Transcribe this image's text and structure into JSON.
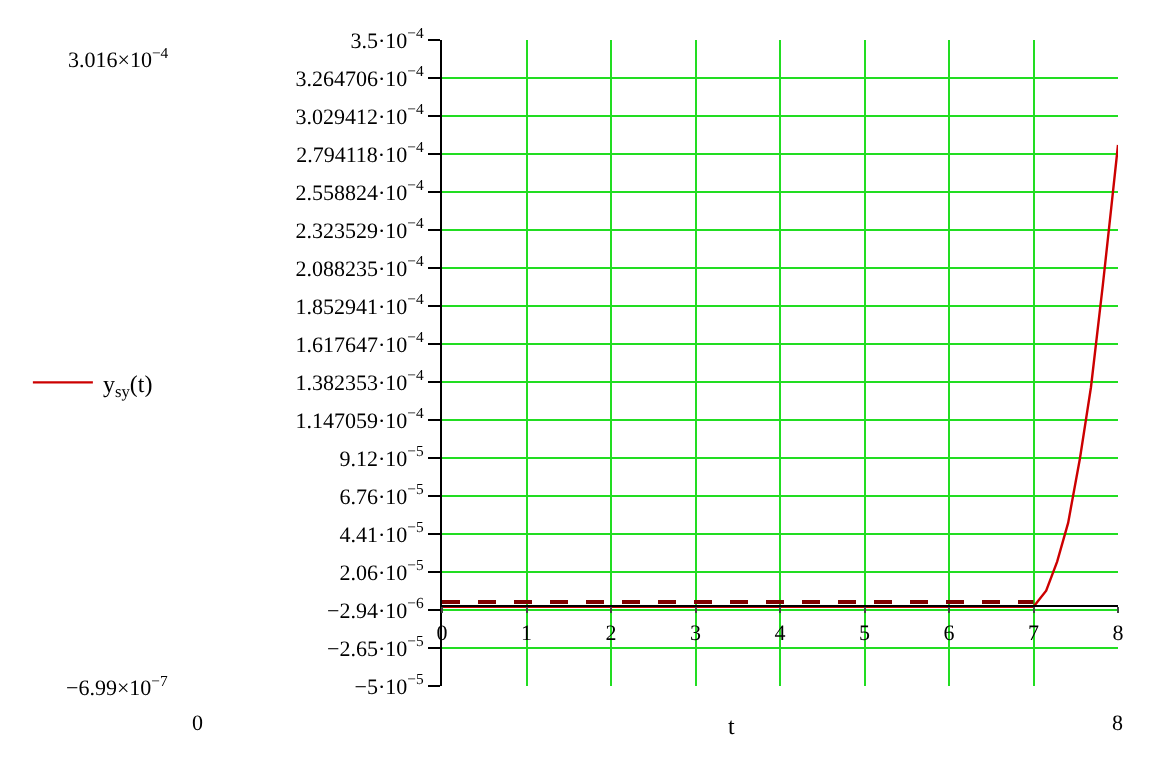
{
  "chart_data": {
    "type": "line",
    "xlabel": "t",
    "legend": "left",
    "grid": true,
    "series": [
      {
        "color": "#800000",
        "line_style": "dashed",
        "x": [
          0,
          7
        ],
        "values": [
          2e-06,
          2e-06
        ]
      },
      {
        "name": "y$_{sy}$(t)",
        "color": "#cc0000",
        "line_style": "solid",
        "x": [
          0,
          1,
          2,
          3,
          4,
          5,
          6,
          7,
          7.15,
          7.28,
          7.41,
          7.55,
          7.68,
          7.82,
          7.92,
          8
        ],
        "values": [
          -1e-06,
          -1e-06,
          -1e-06,
          -1e-06,
          -1e-06,
          -1e-06,
          -1e-06,
          -1e-06,
          9e-06,
          2.7e-05,
          5.1e-05,
          9.1e-05,
          0.000135,
          0.000198,
          0.000246,
          0.000285
        ]
      }
    ],
    "xlim": [
      0,
      8
    ],
    "xticks": [
      0,
      1,
      2,
      3,
      4,
      5,
      6,
      7,
      8
    ],
    "ylim": [
      -5e-05,
      0.00035
    ],
    "yticks": [
      {
        "value": -5e-05,
        "label": "−5·10$^{−5}$"
      },
      {
        "value": -2.647059e-05,
        "label": "−2.65·10$^{−5}$"
      },
      {
        "value": -2.941176e-06,
        "label": "−2.94·10$^{−6}$"
      },
      {
        "value": 2.058824e-05,
        "label": "2.06·10$^{−5}$"
      },
      {
        "value": 4.411765e-05,
        "label": "4.41·10$^{−5}$"
      },
      {
        "value": 6.764706e-05,
        "label": "6.76·10$^{−5}$"
      },
      {
        "value": 9.117647e-05,
        "label": "9.12·10$^{−5}$"
      },
      {
        "value": 0.0001147059,
        "label": "1.147059·10$^{−4}$"
      },
      {
        "value": 0.0001382353,
        "label": "1.382353·10$^{−4}$"
      },
      {
        "value": 0.0001617647,
        "label": "1.617647·10$^{−4}$"
      },
      {
        "value": 0.0001852941,
        "label": "1.852941·10$^{−4}$"
      },
      {
        "value": 0.0002088235,
        "label": "2.088235·10$^{−4}$"
      },
      {
        "value": 0.0002323529,
        "label": "2.323529·10$^{−4}$"
      },
      {
        "value": 0.0002558824,
        "label": "2.558824·10$^{−4}$"
      },
      {
        "value": 0.0002794118,
        "label": "2.794118·10$^{−4}$"
      },
      {
        "value": 0.0003029412,
        "label": "3.029412·10$^{−4}$"
      },
      {
        "value": 0.0003264706,
        "label": "3.264706·10$^{−4}$"
      },
      {
        "value": 0.00035,
        "label": "3.5·10$^{−4}$"
      }
    ],
    "annotations": [
      "3.016×10$^{−4}$",
      "−6.99×10$^{−7}$",
      "0",
      "8"
    ]
  }
}
